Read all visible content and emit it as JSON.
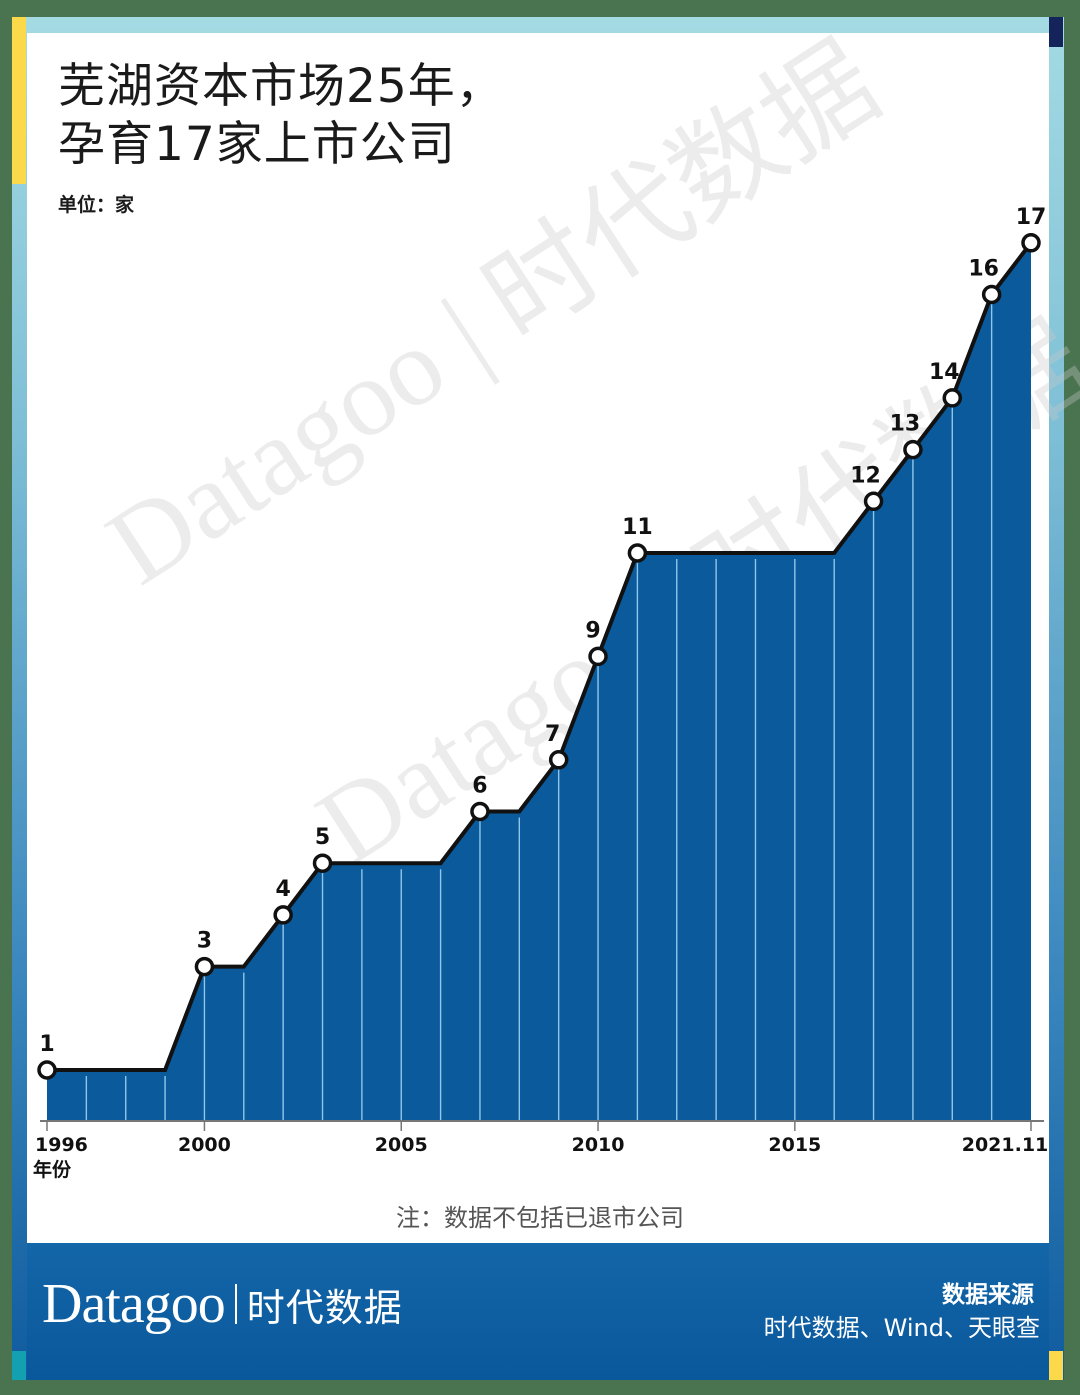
{
  "header": {
    "title_line1": "芜湖资本市场25年，",
    "title_line2": "孕育17家上市公司",
    "unit": "单位：家"
  },
  "note": "注：数据不包括已退市公司",
  "footer": {
    "brand_latin": "Datagoo",
    "brand_cn": "时代数据",
    "source_title": "数据来源",
    "source_text": "时代数据、Wind、天眼查"
  },
  "watermark": {
    "text": "Datagoo | 时代数据"
  },
  "colors": {
    "area_fill": "#0a5a9c",
    "line": "#111111",
    "marker_fill": "#ffffff",
    "gridline": "#8fc7ea",
    "background_outer": "#4a7350",
    "accent_yellow": "#fcd94a",
    "accent_navy": "#14245a",
    "accent_teal": "#13a0b0"
  },
  "chart_data": {
    "type": "area",
    "title": "芜湖资本市场25年，孕育17家上市公司",
    "xlabel": "年份",
    "ylabel": "单位：家",
    "x": [
      1996,
      1997,
      1998,
      1999,
      2000,
      2001,
      2002,
      2003,
      2004,
      2005,
      2006,
      2007,
      2008,
      2009,
      2010,
      2011,
      2012,
      2013,
      2014,
      2015,
      2016,
      2017,
      2018,
      2019,
      2020,
      2021
    ],
    "values": [
      1,
      1,
      1,
      1,
      3,
      3,
      4,
      5,
      5,
      5,
      5,
      6,
      6,
      7,
      9,
      11,
      11,
      11,
      11,
      11,
      11,
      12,
      13,
      14,
      16,
      17
    ],
    "labeled_points": [
      {
        "x": 1996,
        "y": 1,
        "label": "1"
      },
      {
        "x": 2000,
        "y": 3,
        "label": "3"
      },
      {
        "x": 2002,
        "y": 4,
        "label": "4"
      },
      {
        "x": 2003,
        "y": 5,
        "label": "5"
      },
      {
        "x": 2007,
        "y": 6,
        "label": "6"
      },
      {
        "x": 2009,
        "y": 7,
        "label": "7"
      },
      {
        "x": 2010,
        "y": 9,
        "label": "9"
      },
      {
        "x": 2011,
        "y": 11,
        "label": "11"
      },
      {
        "x": 2017,
        "y": 12,
        "label": "12"
      },
      {
        "x": 2018,
        "y": 13,
        "label": "13"
      },
      {
        "x": 2019,
        "y": 14,
        "label": "14"
      },
      {
        "x": 2020,
        "y": 16,
        "label": "16"
      },
      {
        "x": 2021,
        "y": 17,
        "label": "17"
      }
    ],
    "x_ticks": [
      {
        "x": 1996,
        "label": "1996"
      },
      {
        "x": 2000,
        "label": "2000"
      },
      {
        "x": 2005,
        "label": "2005"
      },
      {
        "x": 2010,
        "label": "2010"
      },
      {
        "x": 2015,
        "label": "2015"
      },
      {
        "x": 2021,
        "label": "2021.11"
      }
    ],
    "xlim": [
      1996,
      2021
    ],
    "ylim": [
      0,
      17
    ],
    "grid": "vertical year lines inside area",
    "legend": "none",
    "annotation": "注：数据不包括已退市公司"
  }
}
